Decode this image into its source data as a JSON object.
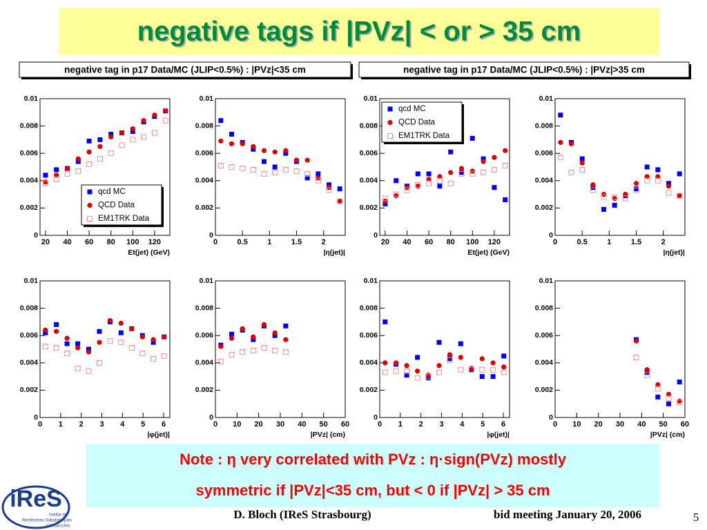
{
  "title": "negative tags if |PVz| < or > 35 cm",
  "panel_headers": [
    "negative tag in p17 Data/MC (JLIP<0.5%) : |PVz|<35 cm",
    "negative tag in p17 Data/MC (JLIP<0.5%) : |PVz|>35 cm"
  ],
  "chart_data": [
    {
      "type": "scatter",
      "x_label": "Et(jet) (GeV)",
      "legend": "lower right",
      "x": [
        20,
        30,
        40,
        50,
        60,
        70,
        80,
        90,
        100,
        110,
        120,
        130
      ],
      "xlim": [
        15,
        134
      ],
      "xticks": [
        20,
        40,
        60,
        80,
        100,
        120
      ],
      "ylim": [
        0,
        0.01
      ],
      "yticks": [
        0,
        0.002,
        0.004,
        0.006,
        0.008,
        0.01
      ],
      "series": [
        {
          "name": "qcd MC",
          "color": "#0000ff",
          "marker": "square",
          "values": [
            0.0044,
            0.0048,
            0.0049,
            0.0054,
            0.0069,
            0.007,
            0.0074,
            0.0075,
            0.0076,
            0.0083,
            0.0087,
            0.0091
          ]
        },
        {
          "name": "QCD Data",
          "color": "#e00000",
          "marker": "circle",
          "values": [
            0.0039,
            0.0044,
            0.0049,
            0.0056,
            0.0061,
            0.0065,
            0.0072,
            0.0075,
            0.0078,
            0.0084,
            0.0088,
            0.0091
          ]
        },
        {
          "name": "EM1TRK Data",
          "color": "#ff8c8c",
          "marker": "open-square",
          "values": [
            0.0038,
            0.0041,
            0.0045,
            0.0047,
            0.0052,
            0.0056,
            0.006,
            0.0066,
            0.007,
            0.0072,
            0.0075,
            0.0084
          ]
        }
      ]
    },
    {
      "type": "scatter",
      "x_label": "|η(jet)|",
      "x": [
        0.1,
        0.3,
        0.5,
        0.7,
        0.9,
        1.1,
        1.3,
        1.5,
        1.7,
        1.9,
        2.1,
        2.3
      ],
      "xlim": [
        0,
        2.4
      ],
      "xticks": [
        0,
        0.5,
        1,
        1.5,
        2
      ],
      "ylim": [
        0,
        0.01
      ],
      "yticks": [
        0,
        0.002,
        0.004,
        0.006,
        0.008,
        0.01
      ],
      "series": [
        {
          "color": "#0000ff",
          "marker": "square",
          "values": [
            0.0084,
            0.0074,
            0.0068,
            0.0063,
            0.0054,
            0.005,
            0.006,
            0.0054,
            0.0042,
            0.0045,
            0.0037,
            0.0034
          ]
        },
        {
          "color": "#e00000",
          "marker": "circle",
          "values": [
            0.0069,
            0.0067,
            0.0067,
            0.0065,
            0.0062,
            0.0061,
            0.0062,
            0.0055,
            0.0055,
            0.0042,
            0.0035,
            0.0025
          ]
        },
        {
          "color": "#ff8c8c",
          "marker": "open-square",
          "values": [
            0.0051,
            0.005,
            0.0049,
            0.0048,
            0.0045,
            0.0046,
            0.0048,
            0.0047,
            0.0045,
            0.004,
            0.0033,
            0.0025
          ]
        }
      ]
    },
    {
      "type": "scatter",
      "x_label": "Et(jet) (GeV)",
      "legend": "upper left",
      "x": [
        20,
        30,
        40,
        50,
        60,
        70,
        80,
        90,
        100,
        110,
        120,
        130
      ],
      "xlim": [
        15,
        134
      ],
      "xticks": [
        20,
        40,
        60,
        80,
        100,
        120
      ],
      "ylim": [
        0,
        0.01
      ],
      "yticks": [
        0,
        0.002,
        0.004,
        0.006,
        0.008,
        0.01
      ],
      "series": [
        {
          "name": "qcd MC",
          "color": "#0000ff",
          "marker": "square",
          "values": [
            0.0023,
            0.004,
            0.0036,
            0.0045,
            0.0045,
            0.0036,
            0.0061,
            0.0046,
            0.0071,
            0.0056,
            0.0035,
            0.0026
          ]
        },
        {
          "name": "QCD Data",
          "color": "#e00000",
          "marker": "circle",
          "values": [
            0.0025,
            0.0029,
            0.0035,
            0.0036,
            0.0041,
            0.0043,
            0.0046,
            0.0049,
            0.0047,
            0.0054,
            0.0057,
            0.0062
          ]
        },
        {
          "name": "EM1TRK Data",
          "color": "#ff8c8c",
          "marker": "open-square",
          "values": [
            0.0027,
            0.003,
            0.0033,
            0.0037,
            0.0038,
            0.004,
            0.0038,
            0.0045,
            0.0045,
            0.0046,
            0.0048,
            0.0051
          ]
        }
      ]
    },
    {
      "type": "scatter",
      "x_label": "|η(jet)|",
      "x": [
        0.1,
        0.3,
        0.5,
        0.7,
        0.9,
        1.1,
        1.3,
        1.5,
        1.7,
        1.9,
        2.1,
        2.3
      ],
      "xlim": [
        0,
        2.4
      ],
      "xticks": [
        0,
        0.5,
        1,
        1.5,
        2
      ],
      "ylim": [
        0,
        0.01
      ],
      "yticks": [
        0,
        0.002,
        0.004,
        0.006,
        0.008,
        0.01
      ],
      "series": [
        {
          "color": "#0000ff",
          "marker": "square",
          "values": [
            0.0088,
            0.0068,
            0.0056,
            0.0035,
            0.0019,
            0.0022,
            0.0029,
            0.0034,
            0.005,
            0.0048,
            0.0038,
            0.0045
          ]
        },
        {
          "color": "#e00000",
          "marker": "circle",
          "values": [
            0.0068,
            0.0067,
            0.0053,
            0.0037,
            0.003,
            0.0027,
            0.003,
            0.0038,
            0.0043,
            0.0043,
            0.0036,
            0.0029
          ]
        },
        {
          "color": "#ff8c8c",
          "marker": "open-square",
          "values": [
            0.0057,
            0.0046,
            0.0048,
            0.0033,
            0.0028,
            0.0028,
            0.0027,
            0.0033,
            0.004,
            0.004,
            0.0031,
            0.0029
          ]
        }
      ]
    },
    {
      "type": "scatter",
      "x_label": "|φ(jet)|",
      "x": [
        0.26,
        0.79,
        1.31,
        1.83,
        2.36,
        2.88,
        3.4,
        3.93,
        4.45,
        4.97,
        5.5,
        6.02
      ],
      "xlim": [
        0,
        6.3
      ],
      "xticks": [
        0,
        1,
        2,
        3,
        4,
        5,
        6
      ],
      "ylim": [
        0,
        0.01
      ],
      "yticks": [
        0,
        0.002,
        0.004,
        0.006,
        0.008,
        0.01
      ],
      "series": [
        {
          "color": "#0000ff",
          "marker": "square",
          "values": [
            0.0062,
            0.0068,
            0.0054,
            0.0054,
            0.005,
            0.0063,
            0.007,
            0.0062,
            0.0065,
            0.006,
            0.0055,
            0.0059
          ]
        },
        {
          "color": "#e00000",
          "marker": "circle",
          "values": [
            0.0064,
            0.0063,
            0.0058,
            0.0051,
            0.0048,
            0.0055,
            0.0071,
            0.0069,
            0.0065,
            0.0059,
            0.0057,
            0.0059
          ]
        },
        {
          "color": "#ff8c8c",
          "marker": "open-square",
          "values": [
            0.0052,
            0.0051,
            0.0047,
            0.0036,
            0.0034,
            0.004,
            0.0056,
            0.0055,
            0.0051,
            0.0047,
            0.0043,
            0.0045
          ]
        }
      ]
    },
    {
      "type": "scatter",
      "x_label": "|PVz| (cm)",
      "x": [
        2.5,
        7.5,
        12.5,
        17.5,
        22.5,
        27.5,
        32.5
      ],
      "xlim": [
        0,
        60
      ],
      "xticks": [
        0,
        10,
        20,
        30,
        40,
        50,
        60
      ],
      "ylim": [
        0,
        0.01
      ],
      "yticks": [
        0,
        0.002,
        0.004,
        0.006,
        0.008,
        0.01
      ],
      "series": [
        {
          "color": "#0000ff",
          "marker": "square",
          "values": [
            0.0053,
            0.0061,
            0.0064,
            0.0057,
            0.0067,
            0.006,
            0.0067
          ]
        },
        {
          "color": "#e00000",
          "marker": "circle",
          "values": [
            0.0052,
            0.0058,
            0.0065,
            0.0059,
            0.0068,
            0.0062,
            0.0057
          ]
        },
        {
          "color": "#ff8c8c",
          "marker": "open-square",
          "values": [
            0.0041,
            0.0046,
            0.0048,
            0.0049,
            0.0051,
            0.0049,
            0.0048
          ]
        }
      ]
    },
    {
      "type": "scatter",
      "x_label": "|φ(jet)|",
      "x": [
        0.26,
        0.79,
        1.31,
        1.83,
        2.36,
        2.88,
        3.4,
        3.93,
        4.45,
        4.97,
        5.5,
        6.02
      ],
      "xlim": [
        0,
        6.3
      ],
      "xticks": [
        0,
        1,
        2,
        3,
        4,
        5,
        6
      ],
      "ylim": [
        0,
        0.01
      ],
      "yticks": [
        0,
        0.002,
        0.004,
        0.006,
        0.008,
        0.01
      ],
      "series": [
        {
          "color": "#0000ff",
          "marker": "square",
          "values": [
            0.007,
            0.0039,
            0.0031,
            0.0044,
            0.0029,
            0.0055,
            0.0043,
            0.0054,
            0.0035,
            0.003,
            0.003,
            0.0045
          ]
        },
        {
          "color": "#e00000",
          "marker": "circle",
          "values": [
            0.004,
            0.004,
            0.0038,
            0.0034,
            0.0031,
            0.0038,
            0.0046,
            0.0044,
            0.0036,
            0.0043,
            0.004,
            0.0037
          ]
        },
        {
          "color": "#ff8c8c",
          "marker": "open-square",
          "values": [
            0.0033,
            0.0034,
            0.0034,
            0.0029,
            0.003,
            0.0033,
            0.0042,
            0.0035,
            0.0035,
            0.0035,
            0.0035,
            0.0033
          ]
        }
      ]
    },
    {
      "type": "scatter",
      "x_label": "|PVz| (cm)",
      "x": [
        37.5,
        42.5,
        47.5,
        52.5,
        57.5
      ],
      "xlim": [
        0,
        60
      ],
      "xticks": [
        0,
        10,
        20,
        30,
        40,
        50,
        60
      ],
      "ylim": [
        0,
        0.01
      ],
      "yticks": [
        0,
        0.002,
        0.004,
        0.006,
        0.008,
        0.01
      ],
      "series": [
        {
          "color": "#0000ff",
          "marker": "square",
          "values": [
            0.0057,
            0.0033,
            0.0015,
            0.001,
            0.0026
          ]
        },
        {
          "color": "#e00000",
          "marker": "circle",
          "values": [
            0.0056,
            0.0035,
            0.0024,
            0.0017,
            0.0012
          ]
        },
        {
          "color": "#ff8c8c",
          "marker": "open-square",
          "values": [
            0.0044,
            0.0031,
            0.0021,
            0.0014,
            0.0011
          ]
        }
      ]
    }
  ],
  "note": [
    "Note : η very correlated with PVz : η·sign(PVz) mostly",
    "symmetric if |PVz|<35 cm,  but < 0 if |PVz| > 35 cm"
  ],
  "footer": {
    "author": "D. Bloch  (IReS Strasbourg)",
    "meeting": "bid meeting  January 20, 2006",
    "page": "5"
  },
  "logo": {
    "name": "iReS",
    "subtitle": [
      "Institut de",
      "Recherches Subatomiques",
      "STRASBOURG"
    ]
  }
}
